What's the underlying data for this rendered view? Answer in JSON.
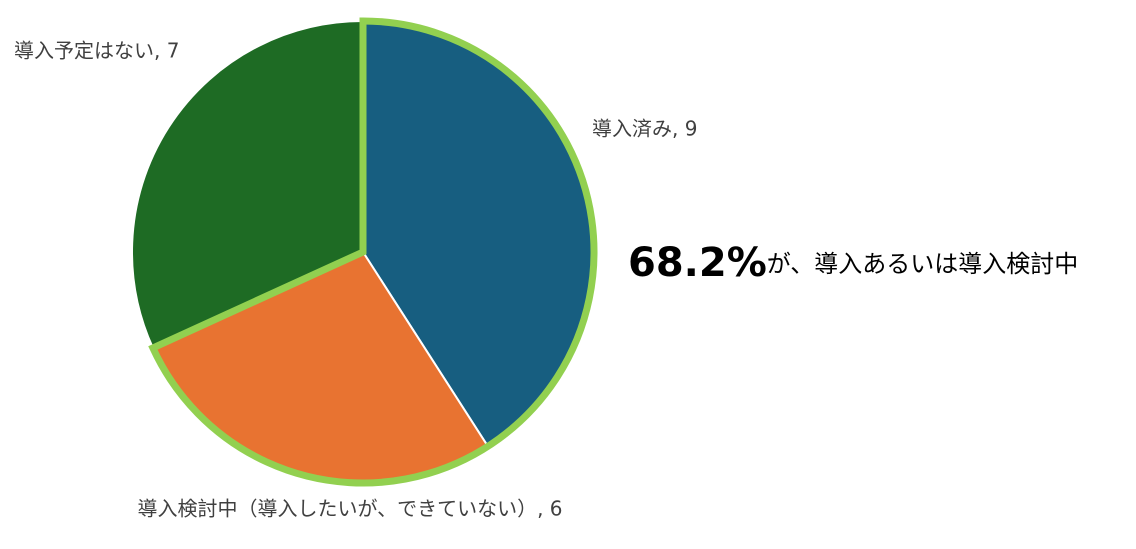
{
  "chart_data": {
    "type": "pie",
    "values": [
      9,
      6,
      7
    ],
    "value_labels": [
      "導入済み, 9",
      "導入検討中（導入したいが、できていない）, 6",
      "導入予定はない, 7"
    ],
    "colors": [
      "#175e80",
      "#e87331",
      "#1e6b24"
    ],
    "highlighted": [
      true,
      true,
      false
    ],
    "highlight_color": "#92d050",
    "annotation": {
      "highlight": "68.2%",
      "text": "が、導入あるいは導入検討中"
    }
  }
}
